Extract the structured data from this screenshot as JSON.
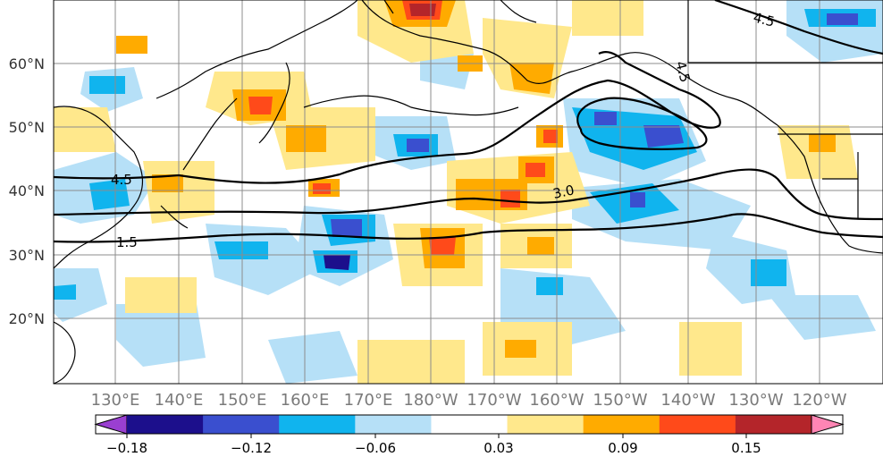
{
  "map": {
    "lat_labels": [
      "60°N",
      "50°N",
      "40°N",
      "30°N",
      "20°N"
    ],
    "lon_labels": [
      "130°E",
      "140°E",
      "150°E",
      "160°E",
      "170°E",
      "180°W",
      "170°W",
      "160°W",
      "150°W",
      "140°W",
      "130°W",
      "120°W"
    ],
    "contour_labels": [
      "4.5",
      "4.5",
      "4.5",
      "3.0",
      "1.5"
    ]
  },
  "colorbar": {
    "tick_labels": [
      "−0.18",
      "−0.12",
      "−0.06",
      "0.03",
      "0.09",
      "0.15"
    ],
    "colors": [
      "#9a3fd1",
      "#1c0f8c",
      "#3a4fcf",
      "#10b4ee",
      "#b6e0f7",
      "#ffffff",
      "#ffe88c",
      "#ffab00",
      "#ff4a1a",
      "#b4252a",
      "#ff85b4"
    ]
  }
}
